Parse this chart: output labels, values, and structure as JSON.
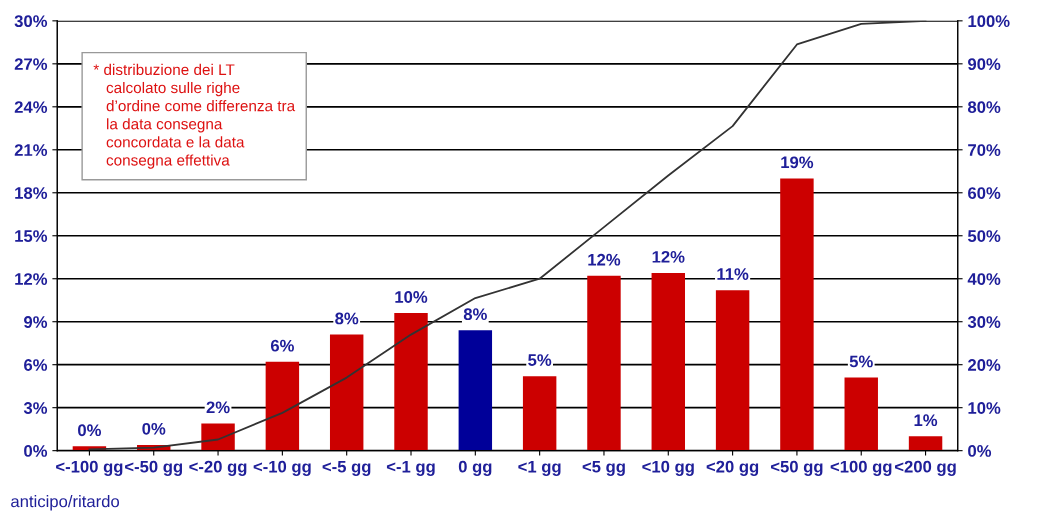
{
  "chart_data": {
    "type": "bar",
    "xlabel": "anticipo/ritardo",
    "categories": [
      "<-100 gg",
      "<-50 gg",
      "<-20 gg",
      "<-10 gg",
      "<-5 gg",
      "<-1 gg",
      "0 gg",
      "<1 gg",
      "<5 gg",
      "<10 gg",
      "<20 gg",
      "<50 gg",
      "<100 gg",
      "<200 gg"
    ],
    "series": [
      {
        "colors": [
          "#cc0000",
          "#cc0000",
          "#cc0000",
          "#cc0000",
          "#cc0000",
          "#cc0000",
          "#000099",
          "#cc0000",
          "#cc0000",
          "#cc0000",
          "#cc0000",
          "#cc0000",
          "#cc0000",
          "#cc0000"
        ],
        "values": [
          0.3,
          0.4,
          1.9,
          6.2,
          8.1,
          9.6,
          8.4,
          5.2,
          12.2,
          12.4,
          11.2,
          19.0,
          5.1,
          1.0
        ],
        "value_labels": [
          "0%",
          "0%",
          "2%",
          "6%",
          "8%",
          "10%",
          "8%",
          "5%",
          "12%",
          "12%",
          "11%",
          "19%",
          "5%",
          "1%"
        ]
      },
      {
        "type": "line",
        "axis": "y2",
        "color": "#333333",
        "values": [
          0.3,
          0.7,
          2.6,
          8.8,
          17,
          27,
          35.5,
          40,
          52,
          64,
          75.5,
          94.5,
          99.3,
          100
        ]
      }
    ],
    "ylim": [
      0,
      30
    ],
    "yticks": [
      {
        "value": 0,
        "label": "0%"
      },
      {
        "value": 3,
        "label": "3%"
      },
      {
        "value": 6,
        "label": "6%"
      },
      {
        "value": 9,
        "label": "9%"
      },
      {
        "value": 12,
        "label": "12%"
      },
      {
        "value": 15,
        "label": "15%"
      },
      {
        "value": 18,
        "label": "18%"
      },
      {
        "value": 21,
        "label": "21%"
      },
      {
        "value": 24,
        "label": "24%"
      },
      {
        "value": 27,
        "label": "27%"
      },
      {
        "value": 30,
        "label": "30%"
      }
    ],
    "y2lim": [
      0,
      100
    ],
    "y2ticks": [
      {
        "value": 0,
        "label": "0%"
      },
      {
        "value": 10,
        "label": "10%"
      },
      {
        "value": 20,
        "label": "20%"
      },
      {
        "value": 30,
        "label": "30%"
      },
      {
        "value": 40,
        "label": "40%"
      },
      {
        "value": 50,
        "label": "50%"
      },
      {
        "value": 60,
        "label": "60%"
      },
      {
        "value": 70,
        "label": "70%"
      },
      {
        "value": 80,
        "label": "80%"
      },
      {
        "value": 90,
        "label": "90%"
      },
      {
        "value": 100,
        "label": "100%"
      }
    ],
    "grid": "y",
    "annotations": [
      "* distribuzione dei LT\n   calcolato sulle righe\n   d’ordine come differenza tra\n   la data consegna\n   concordata e la data\n   consegna effettiva"
    ]
  }
}
